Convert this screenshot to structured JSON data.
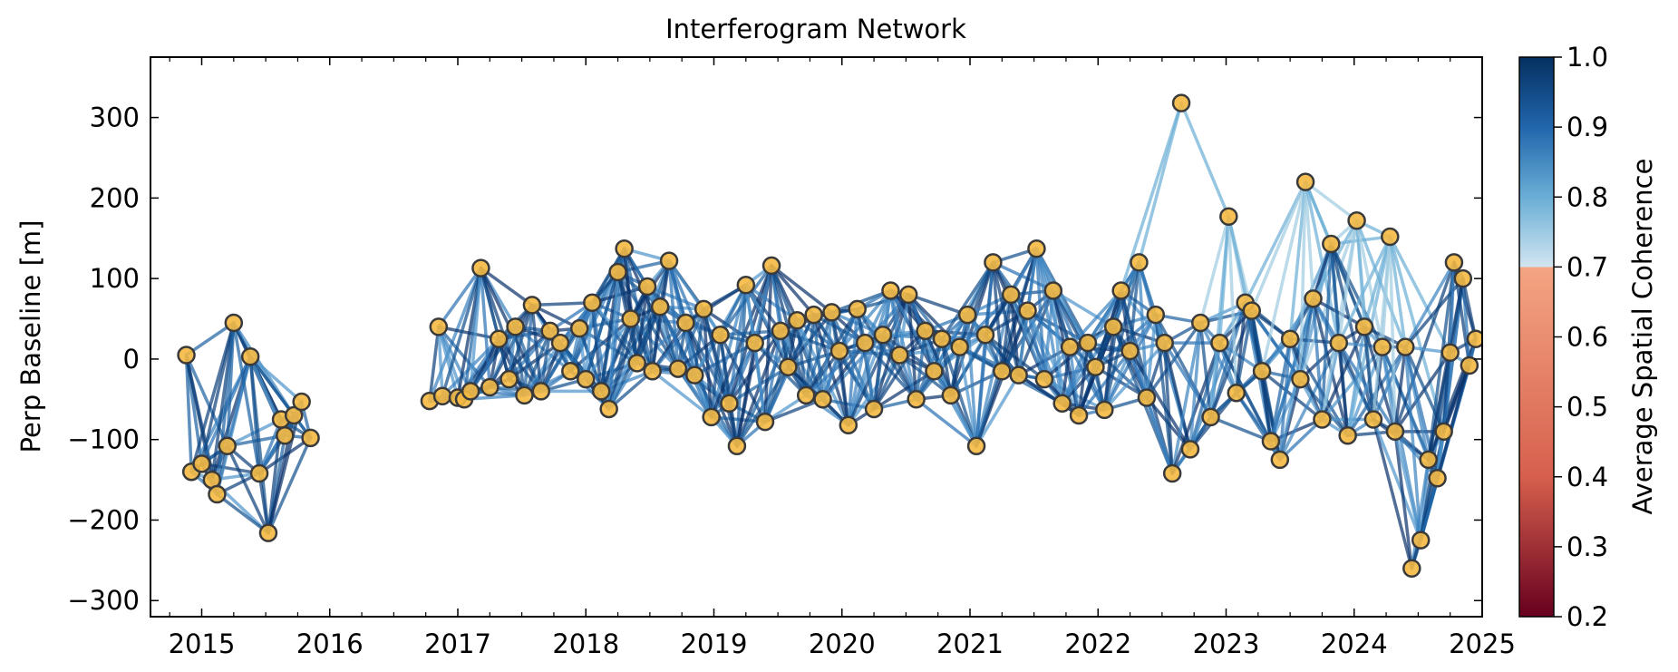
{
  "chart_data": {
    "type": "network",
    "title": "Interferogram Network",
    "xlabel": "",
    "ylabel": "Perp Baseline [m]",
    "xlim": [
      2014.6,
      2025.0
    ],
    "ylim": [
      -320,
      375
    ],
    "xticks": [
      2015,
      2016,
      2017,
      2018,
      2019,
      2020,
      2021,
      2022,
      2023,
      2024,
      2025
    ],
    "xtick_labels": [
      "2015",
      "2016",
      "2017",
      "2018",
      "2019",
      "2020",
      "2021",
      "2022",
      "2023",
      "2024",
      "2025"
    ],
    "yticks": [
      -300,
      -200,
      -100,
      0,
      100,
      200,
      300
    ],
    "ytick_labels": [
      "−300",
      "−200",
      "−100",
      "0",
      "100",
      "200",
      "300"
    ],
    "colorbar": {
      "label": "Average Spatial Coherence",
      "range": [
        0.2,
        1.0
      ],
      "ticks": [
        0.2,
        0.3,
        0.4,
        0.5,
        0.6,
        0.7,
        0.8,
        0.9,
        1.0
      ],
      "tick_labels": [
        "0.2",
        "0.3",
        "0.4",
        "0.5",
        "0.6",
        "0.7",
        "0.8",
        "0.9",
        "1.0"
      ],
      "colormap": "RdBu",
      "gradient_stops": [
        {
          "value": 0.2,
          "color": "#67001f"
        },
        {
          "value": 0.4,
          "color": "#d6604d"
        },
        {
          "value": 0.7,
          "color": "#f4a582"
        },
        {
          "value": 0.7001,
          "color": "#d1e5f0"
        },
        {
          "value": 0.8,
          "color": "#6aaed6"
        },
        {
          "value": 0.9,
          "color": "#2166ac"
        },
        {
          "value": 1.0,
          "color": "#053061"
        }
      ]
    },
    "node_color": "#f5b942",
    "node_edge_color": "#3a3a3a",
    "acquisitions": [
      [
        2014.88,
        5
      ],
      [
        2014.92,
        -140
      ],
      [
        2015.0,
        -130
      ],
      [
        2015.08,
        -150
      ],
      [
        2015.12,
        -168
      ],
      [
        2015.2,
        -108
      ],
      [
        2015.25,
        45
      ],
      [
        2015.38,
        3
      ],
      [
        2015.45,
        -142
      ],
      [
        2015.52,
        -216
      ],
      [
        2015.62,
        -75
      ],
      [
        2015.65,
        -95
      ],
      [
        2015.72,
        -70
      ],
      [
        2015.78,
        -53
      ],
      [
        2015.85,
        -98
      ],
      [
        2016.78,
        -52
      ],
      [
        2016.85,
        40
      ],
      [
        2016.88,
        -46
      ],
      [
        2017.0,
        -48
      ],
      [
        2017.05,
        -50
      ],
      [
        2017.1,
        -40
      ],
      [
        2017.18,
        113
      ],
      [
        2017.25,
        -35
      ],
      [
        2017.32,
        25
      ],
      [
        2017.4,
        -25
      ],
      [
        2017.45,
        40
      ],
      [
        2017.52,
        -45
      ],
      [
        2017.58,
        67
      ],
      [
        2017.65,
        -40
      ],
      [
        2017.72,
        35
      ],
      [
        2017.8,
        20
      ],
      [
        2017.88,
        -15
      ],
      [
        2017.95,
        38
      ],
      [
        2018.0,
        -25
      ],
      [
        2018.05,
        70
      ],
      [
        2018.12,
        -40
      ],
      [
        2018.18,
        -62
      ],
      [
        2018.25,
        108
      ],
      [
        2018.3,
        137
      ],
      [
        2018.35,
        50
      ],
      [
        2018.4,
        -5
      ],
      [
        2018.48,
        90
      ],
      [
        2018.52,
        -15
      ],
      [
        2018.58,
        65
      ],
      [
        2018.65,
        122
      ],
      [
        2018.72,
        -12
      ],
      [
        2018.78,
        45
      ],
      [
        2018.85,
        -20
      ],
      [
        2018.92,
        62
      ],
      [
        2018.98,
        -72
      ],
      [
        2019.05,
        30
      ],
      [
        2019.12,
        -55
      ],
      [
        2019.18,
        -108
      ],
      [
        2019.25,
        92
      ],
      [
        2019.32,
        20
      ],
      [
        2019.4,
        -78
      ],
      [
        2019.45,
        116
      ],
      [
        2019.52,
        35
      ],
      [
        2019.58,
        -10
      ],
      [
        2019.65,
        48
      ],
      [
        2019.72,
        -45
      ],
      [
        2019.78,
        55
      ],
      [
        2019.85,
        -50
      ],
      [
        2019.92,
        58
      ],
      [
        2019.98,
        10
      ],
      [
        2020.05,
        -82
      ],
      [
        2020.12,
        62
      ],
      [
        2020.18,
        20
      ],
      [
        2020.25,
        -62
      ],
      [
        2020.32,
        30
      ],
      [
        2020.38,
        85
      ],
      [
        2020.45,
        5
      ],
      [
        2020.52,
        80
      ],
      [
        2020.58,
        -50
      ],
      [
        2020.65,
        35
      ],
      [
        2020.72,
        -15
      ],
      [
        2020.78,
        25
      ],
      [
        2020.85,
        -45
      ],
      [
        2020.92,
        15
      ],
      [
        2020.98,
        55
      ],
      [
        2021.05,
        -108
      ],
      [
        2021.12,
        30
      ],
      [
        2021.18,
        120
      ],
      [
        2021.25,
        -15
      ],
      [
        2021.32,
        80
      ],
      [
        2021.38,
        -20
      ],
      [
        2021.45,
        60
      ],
      [
        2021.52,
        137
      ],
      [
        2021.58,
        -25
      ],
      [
        2021.65,
        85
      ],
      [
        2021.72,
        -55
      ],
      [
        2021.78,
        15
      ],
      [
        2021.85,
        -70
      ],
      [
        2021.92,
        20
      ],
      [
        2021.98,
        -10
      ],
      [
        2022.05,
        -63
      ],
      [
        2022.12,
        40
      ],
      [
        2022.18,
        85
      ],
      [
        2022.25,
        10
      ],
      [
        2022.32,
        120
      ],
      [
        2022.38,
        -48
      ],
      [
        2022.45,
        55
      ],
      [
        2022.52,
        20
      ],
      [
        2022.58,
        -142
      ],
      [
        2022.65,
        318
      ],
      [
        2022.72,
        -112
      ],
      [
        2022.8,
        45
      ],
      [
        2022.88,
        -72
      ],
      [
        2022.95,
        20
      ],
      [
        2023.02,
        177
      ],
      [
        2023.08,
        -42
      ],
      [
        2023.15,
        70
      ],
      [
        2023.2,
        60
      ],
      [
        2023.28,
        -15
      ],
      [
        2023.35,
        -102
      ],
      [
        2023.42,
        -125
      ],
      [
        2023.5,
        25
      ],
      [
        2023.58,
        -25
      ],
      [
        2023.62,
        220
      ],
      [
        2023.68,
        75
      ],
      [
        2023.75,
        -75
      ],
      [
        2023.82,
        143
      ],
      [
        2023.88,
        20
      ],
      [
        2023.95,
        -95
      ],
      [
        2024.02,
        172
      ],
      [
        2024.08,
        40
      ],
      [
        2024.15,
        -75
      ],
      [
        2024.22,
        15
      ],
      [
        2024.28,
        152
      ],
      [
        2024.32,
        -90
      ],
      [
        2024.4,
        15
      ],
      [
        2024.45,
        -260
      ],
      [
        2024.52,
        -225
      ],
      [
        2024.58,
        -125
      ],
      [
        2024.65,
        -148
      ],
      [
        2024.7,
        -90
      ],
      [
        2024.75,
        8
      ],
      [
        2024.78,
        120
      ],
      [
        2024.85,
        100
      ],
      [
        2024.9,
        -8
      ],
      [
        2024.95,
        25
      ]
    ]
  }
}
